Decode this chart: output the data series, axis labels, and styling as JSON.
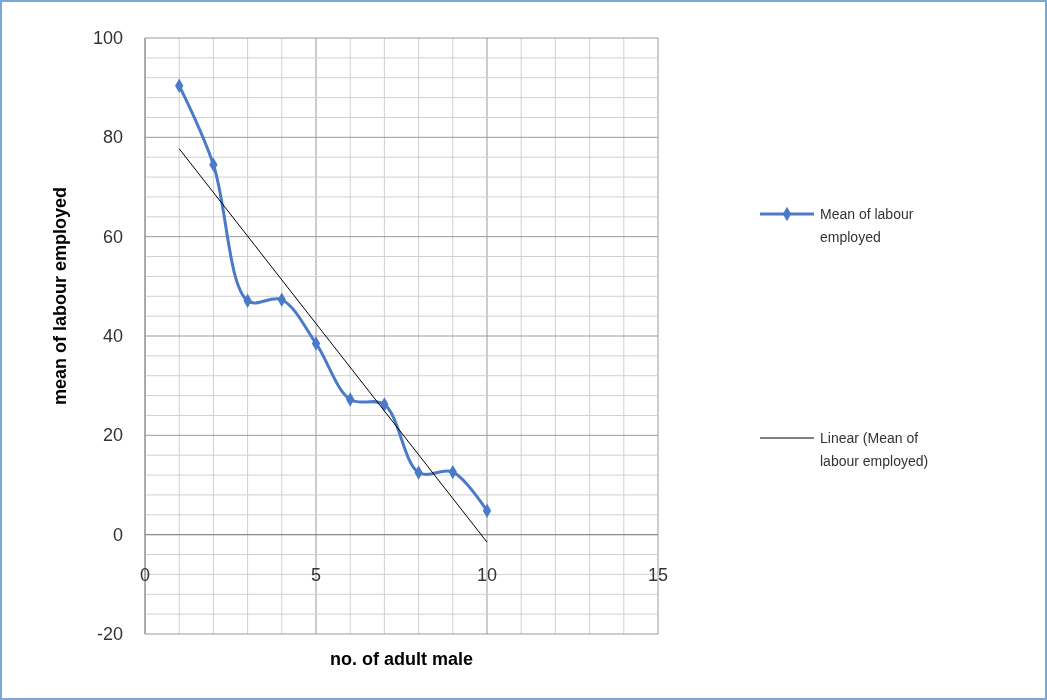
{
  "chart_data": {
    "type": "line",
    "xlabel": "no. of adult male",
    "ylabel": "mean of labour employed",
    "x": [
      1,
      2,
      3,
      4,
      5,
      6,
      7,
      8,
      9,
      10
    ],
    "series": [
      {
        "name": "Mean of labour employed",
        "color": "#4a7ac8",
        "values": [
          90.4,
          74.5,
          47.1,
          47.3,
          38.5,
          27.2,
          26.2,
          12.5,
          12.6,
          4.8
        ],
        "marker": "diamond"
      },
      {
        "name": "Linear (Mean of labour employed)",
        "color": "#000000",
        "type": "line",
        "x": [
          1,
          10
        ],
        "values": [
          77.7,
          -1.5
        ],
        "marker": "none"
      }
    ],
    "xlim": [
      0,
      15
    ],
    "ylim": [
      -20,
      100
    ],
    "xticks": [
      0,
      {
        "value": 1,
        "label": null
      },
      {
        "value": 2,
        "label": null
      },
      {
        "value": 3,
        "label": null
      },
      {
        "value": 4,
        "label": null
      },
      5,
      {
        "value": 6,
        "label": null
      },
      {
        "value": 7,
        "label": null
      },
      {
        "value": 8,
        "label": null
      },
      {
        "value": 9,
        "label": null
      },
      10,
      {
        "value": 11,
        "label": null
      },
      {
        "value": 12,
        "label": null
      },
      {
        "value": 13,
        "label": null
      },
      {
        "value": 14,
        "label": null
      },
      15
    ],
    "yticks": [
      -20,
      {
        "value": -16,
        "label": null
      },
      {
        "value": -12,
        "label": null
      },
      {
        "value": -8,
        "label": null
      },
      {
        "value": -4,
        "label": null
      },
      0,
      {
        "value": 4,
        "label": null
      },
      {
        "value": 8,
        "label": null
      },
      {
        "value": 12,
        "label": null
      },
      {
        "value": 16,
        "label": null
      },
      20,
      {
        "value": 24,
        "label": null
      },
      {
        "value": 28,
        "label": null
      },
      {
        "value": 32,
        "label": null
      },
      {
        "value": 36,
        "label": null
      },
      40,
      {
        "value": 44,
        "label": null
      },
      {
        "value": 48,
        "label": null
      },
      {
        "value": 52,
        "label": null
      },
      {
        "value": 56,
        "label": null
      },
      60,
      {
        "value": 64,
        "label": null
      },
      {
        "value": 68,
        "label": null
      },
      {
        "value": 72,
        "label": null
      },
      {
        "value": 76,
        "label": null
      },
      80,
      {
        "value": 84,
        "label": null
      },
      {
        "value": 88,
        "label": null
      },
      {
        "value": 92,
        "label": null
      },
      {
        "value": 96,
        "label": null
      },
      100
    ],
    "grid": true,
    "legend": "right"
  }
}
